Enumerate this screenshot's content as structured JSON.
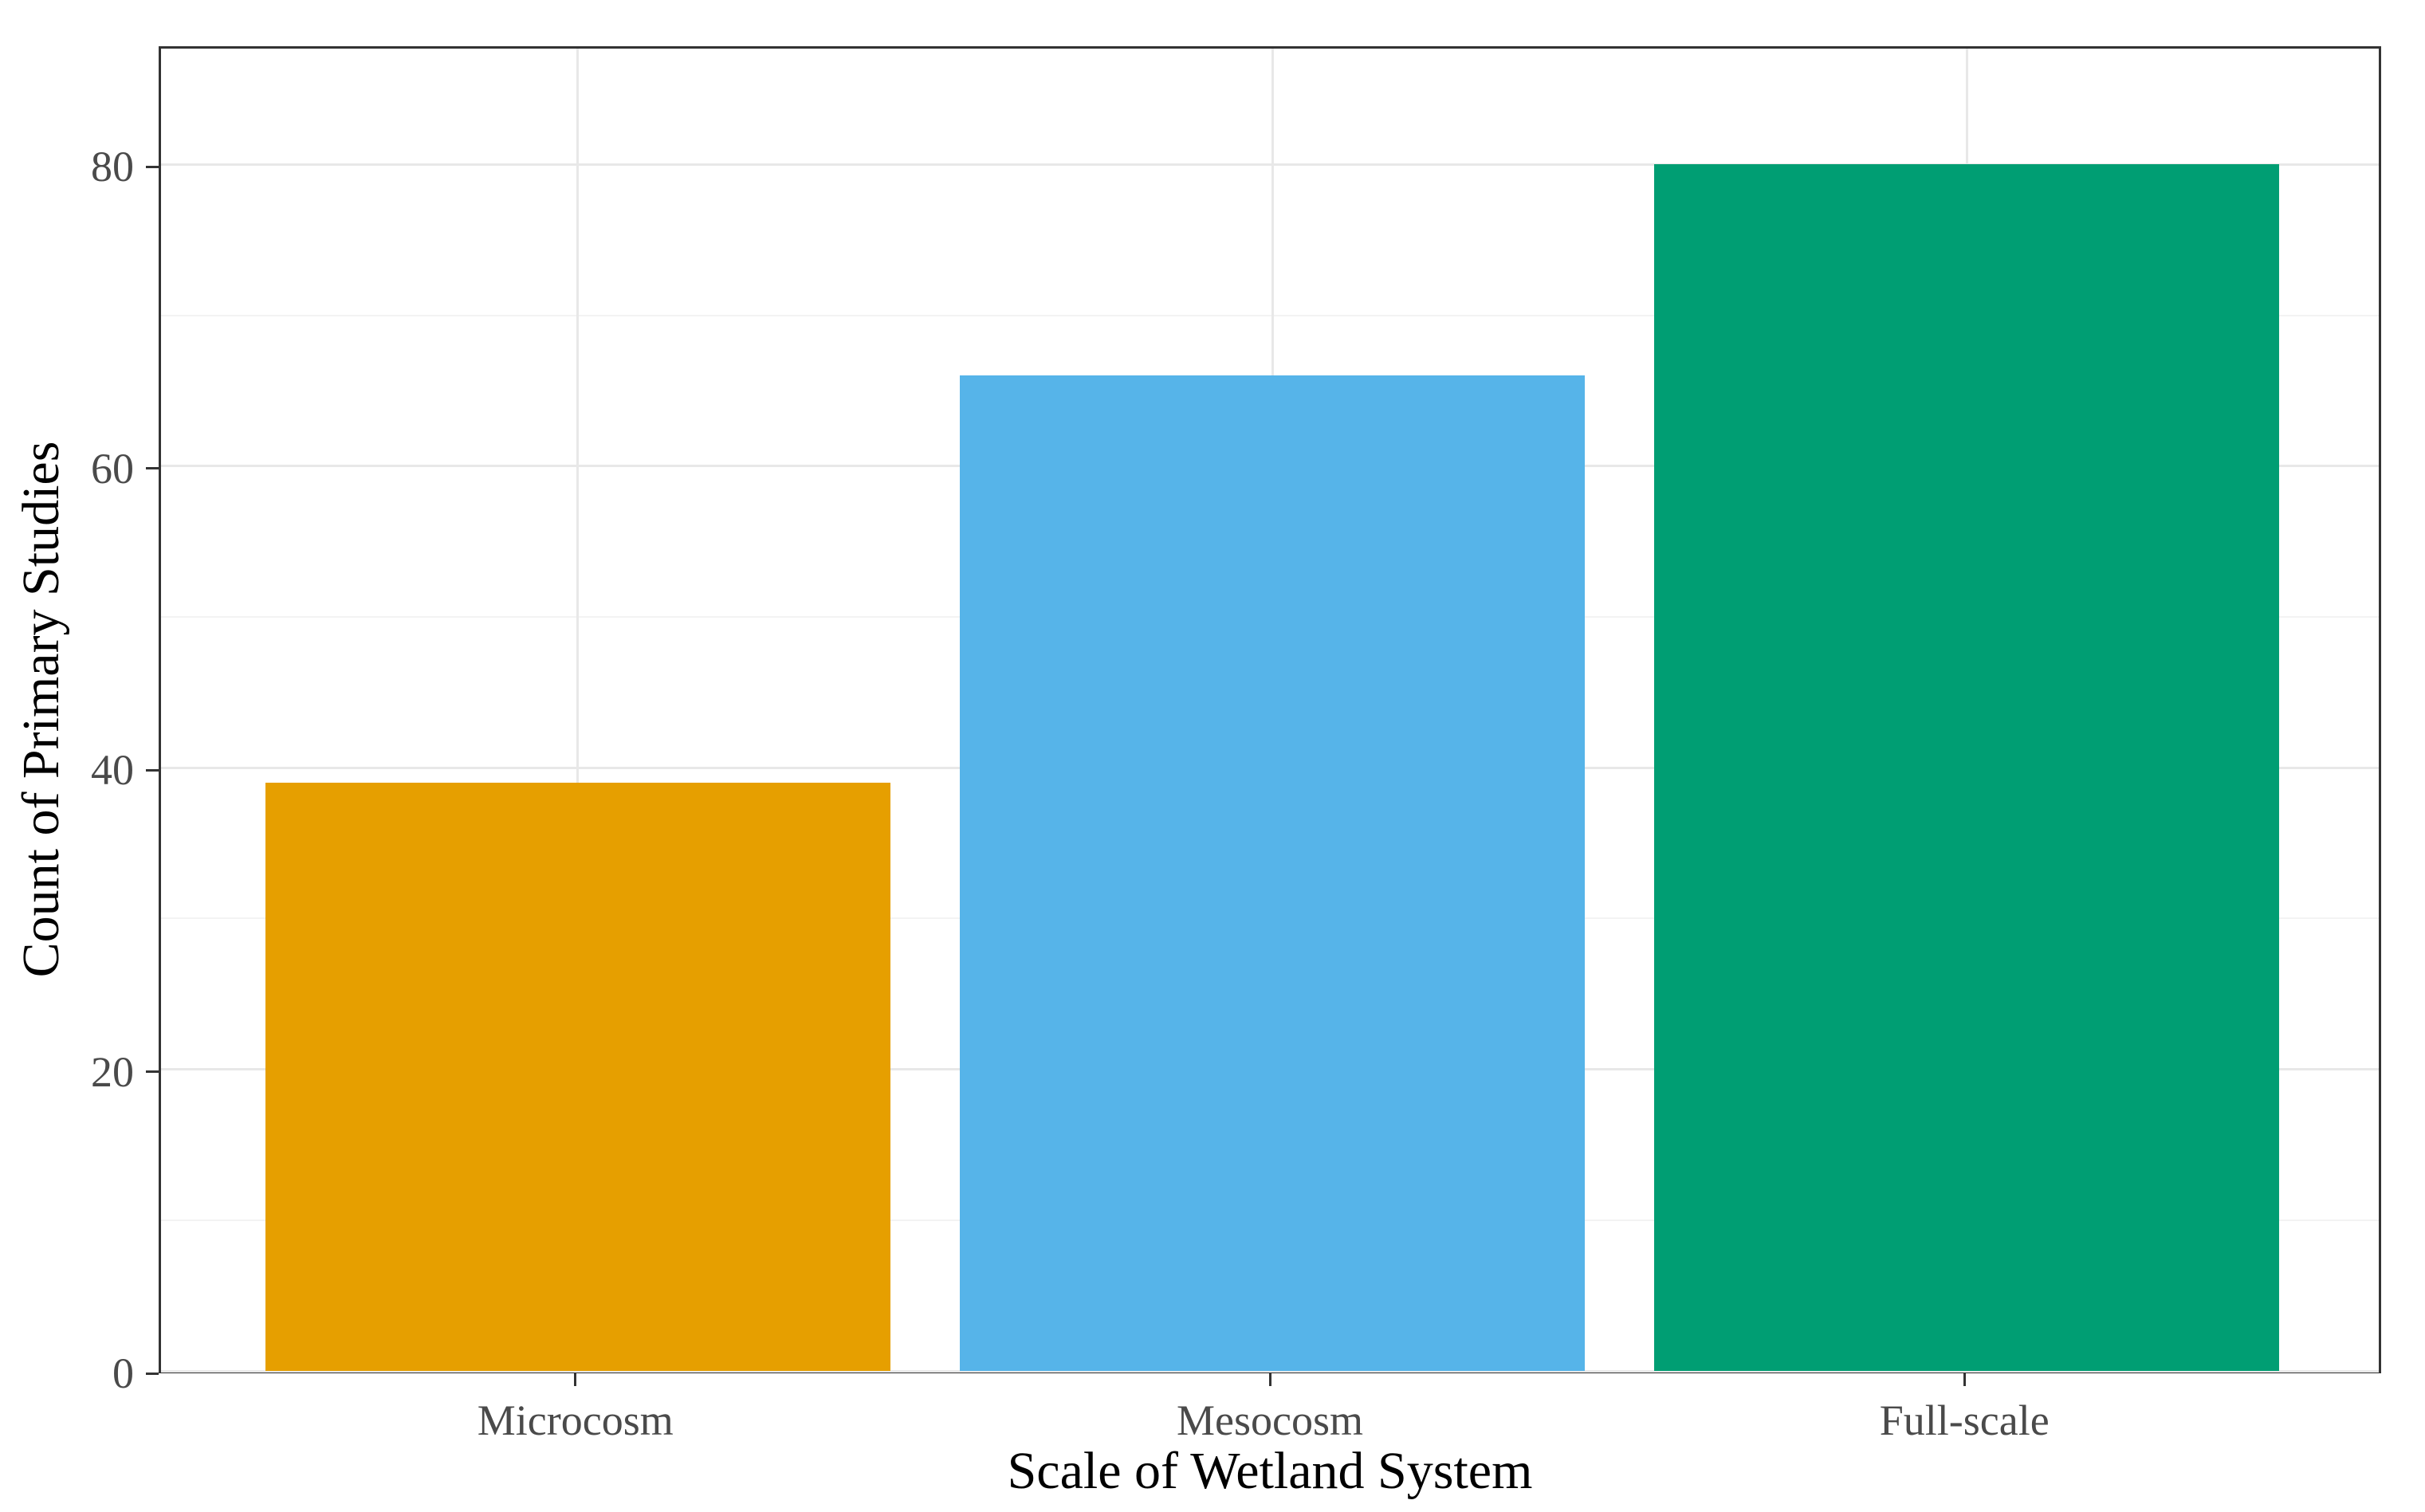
{
  "chart_data": {
    "type": "bar",
    "title": "",
    "categories": [
      "Microcosm",
      "Mesocosm",
      "Full-scale"
    ],
    "values": [
      39,
      66,
      80
    ],
    "xlabel": "Scale of Wetland System",
    "ylabel": "Count of Primary Studies",
    "y_major_ticks": [
      0,
      20,
      40,
      60,
      80
    ],
    "y_minor_ticks": [
      10,
      30,
      50,
      70
    ],
    "ylim": [
      0,
      88
    ],
    "grid": "on",
    "legend": "none",
    "bar_colors": [
      "#E69F00",
      "#56B4E9",
      "#009E73"
    ],
    "colors": {
      "panel_border": "#333333",
      "grid_major": "#e8e8e8",
      "grid_minor": "#f3f3f3",
      "tick_label": "#4a4a4a",
      "axis_title": "#000000",
      "background": "#ffffff"
    }
  }
}
